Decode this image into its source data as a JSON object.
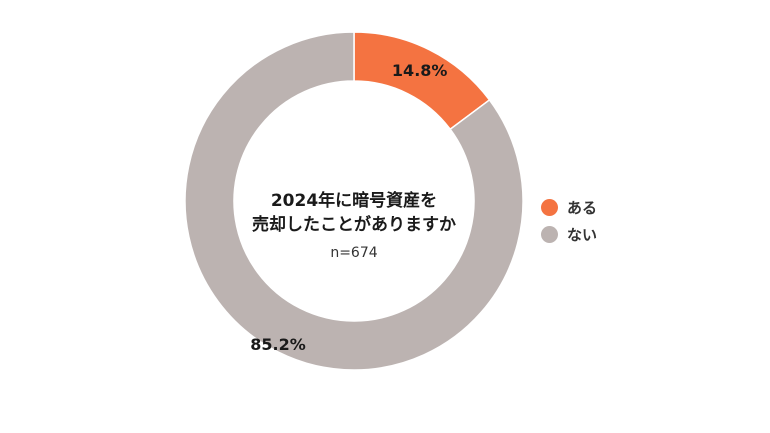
{
  "chart_data": {
    "type": "pie",
    "title_line1": "2024年に暗号資産を",
    "title_line2": "売却したことがありますか",
    "sample_size": "n=674",
    "slices": [
      {
        "label": "ある",
        "value": 14.8,
        "value_label": "14.8%",
        "color": "#f47341"
      },
      {
        "label": "ない",
        "value": 85.2,
        "value_label": "85.2%",
        "color": "#bcb3b1"
      }
    ],
    "legend_position": "right",
    "donut": true
  }
}
